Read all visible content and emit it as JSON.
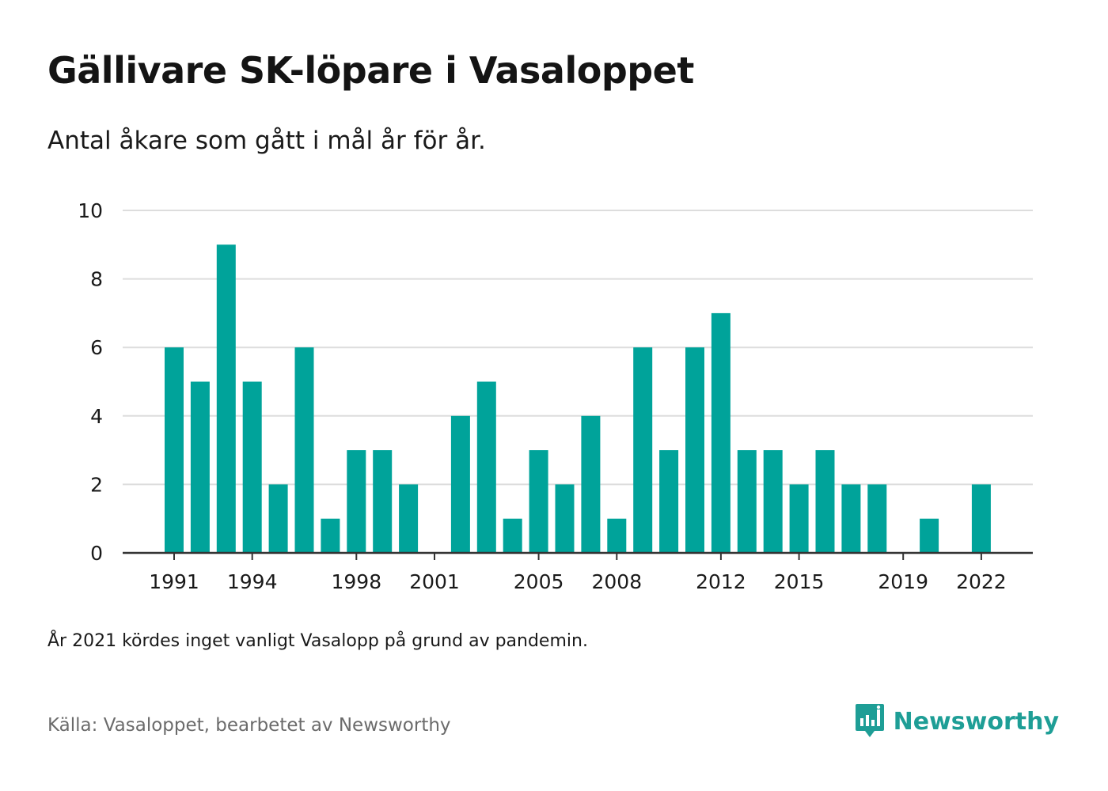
{
  "title": "Gällivare SK-löpare i Vasaloppet",
  "subtitle": "Antal åkare som gått i mål år för år.",
  "note": "År 2021 kördes inget vanligt Vasalopp på grund av pandemin.",
  "source": "Källa: Vasaloppet, bearbetet av Newsworthy",
  "brand": {
    "name": "Newsworthy",
    "icon": "newsworthy-logo-icon"
  },
  "colors": {
    "bar": "#00a39a",
    "grid": "#dddddd",
    "axis": "#333333",
    "brand": "#1e9e96"
  },
  "chart_data": {
    "type": "bar",
    "x": [
      1991,
      1992,
      1993,
      1994,
      1995,
      1996,
      1997,
      1998,
      1999,
      2000,
      2001,
      2002,
      2003,
      2004,
      2005,
      2006,
      2007,
      2008,
      2009,
      2010,
      2011,
      2012,
      2013,
      2014,
      2015,
      2016,
      2017,
      2018,
      2019,
      2020,
      2021,
      2022
    ],
    "values": [
      6,
      5,
      9,
      5,
      2,
      6,
      1,
      3,
      3,
      2,
      0,
      4,
      5,
      1,
      3,
      2,
      4,
      1,
      6,
      3,
      6,
      7,
      3,
      3,
      2,
      3,
      2,
      2,
      0,
      1,
      0,
      2
    ],
    "ylim": [
      0,
      10
    ],
    "yticks": [
      "0",
      "2",
      "4",
      "6",
      "8",
      "10"
    ],
    "xtick_labels": [
      "1991",
      "1994",
      "1998",
      "2001",
      "2005",
      "2008",
      "2012",
      "2015",
      "2019",
      "2022"
    ],
    "grid": true,
    "xlabel": "",
    "ylabel": ""
  }
}
